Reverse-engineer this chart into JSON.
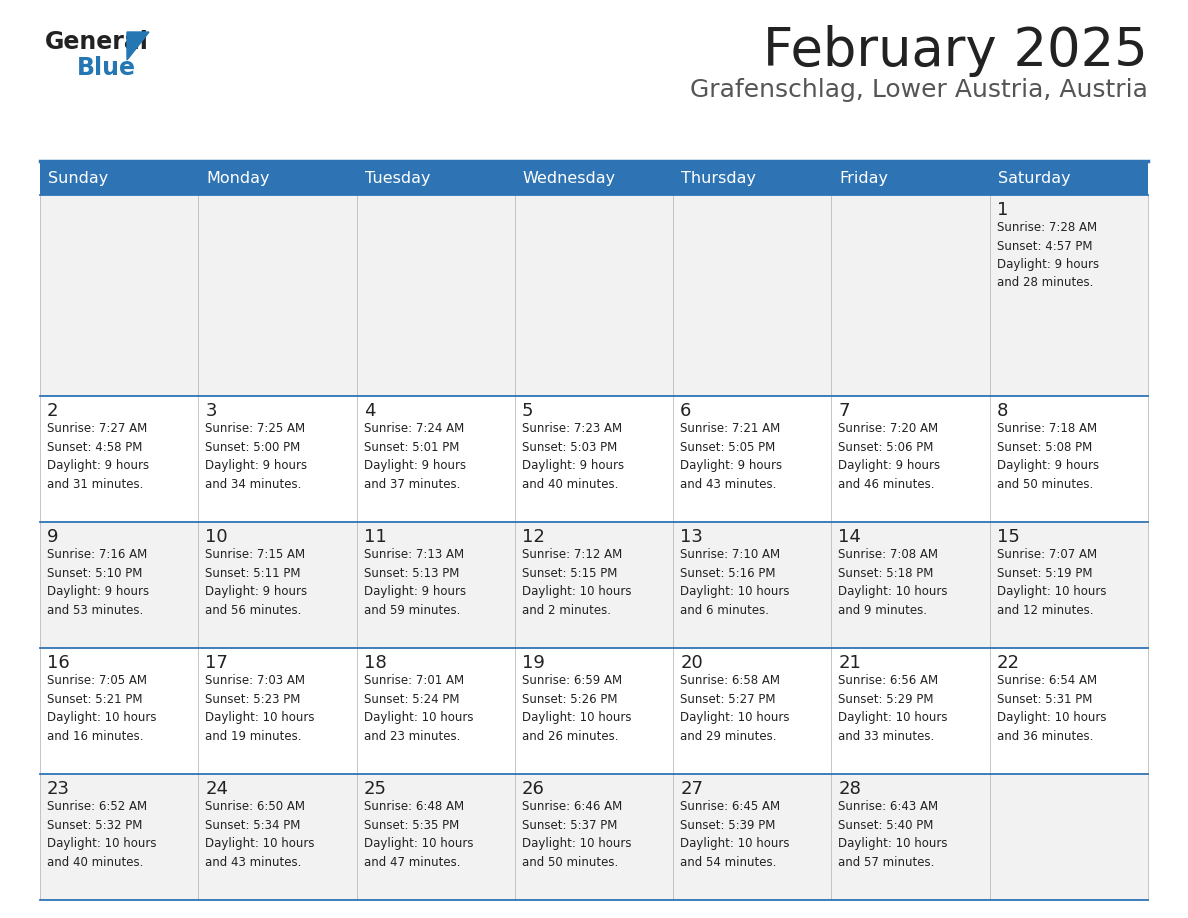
{
  "title": "February 2025",
  "subtitle": "Grafenschlag, Lower Austria, Austria",
  "days_of_week": [
    "Sunday",
    "Monday",
    "Tuesday",
    "Wednesday",
    "Thursday",
    "Friday",
    "Saturday"
  ],
  "header_bg": "#2E74B5",
  "header_text_color": "#FFFFFF",
  "cell_bg_odd": "#F2F2F2",
  "cell_bg_even": "#FFFFFF",
  "border_color": "#2E74B5",
  "day_number_color": "#222222",
  "cell_text_color": "#222222",
  "title_color": "#222222",
  "subtitle_color": "#555555",
  "logo_general_color": "#222222",
  "logo_blue_color": "#2477B3",
  "weeks": [
    [
      {
        "day": null,
        "info": null
      },
      {
        "day": null,
        "info": null
      },
      {
        "day": null,
        "info": null
      },
      {
        "day": null,
        "info": null
      },
      {
        "day": null,
        "info": null
      },
      {
        "day": null,
        "info": null
      },
      {
        "day": 1,
        "info": "Sunrise: 7:28 AM\nSunset: 4:57 PM\nDaylight: 9 hours\nand 28 minutes."
      }
    ],
    [
      {
        "day": 2,
        "info": "Sunrise: 7:27 AM\nSunset: 4:58 PM\nDaylight: 9 hours\nand 31 minutes."
      },
      {
        "day": 3,
        "info": "Sunrise: 7:25 AM\nSunset: 5:00 PM\nDaylight: 9 hours\nand 34 minutes."
      },
      {
        "day": 4,
        "info": "Sunrise: 7:24 AM\nSunset: 5:01 PM\nDaylight: 9 hours\nand 37 minutes."
      },
      {
        "day": 5,
        "info": "Sunrise: 7:23 AM\nSunset: 5:03 PM\nDaylight: 9 hours\nand 40 minutes."
      },
      {
        "day": 6,
        "info": "Sunrise: 7:21 AM\nSunset: 5:05 PM\nDaylight: 9 hours\nand 43 minutes."
      },
      {
        "day": 7,
        "info": "Sunrise: 7:20 AM\nSunset: 5:06 PM\nDaylight: 9 hours\nand 46 minutes."
      },
      {
        "day": 8,
        "info": "Sunrise: 7:18 AM\nSunset: 5:08 PM\nDaylight: 9 hours\nand 50 minutes."
      }
    ],
    [
      {
        "day": 9,
        "info": "Sunrise: 7:16 AM\nSunset: 5:10 PM\nDaylight: 9 hours\nand 53 minutes."
      },
      {
        "day": 10,
        "info": "Sunrise: 7:15 AM\nSunset: 5:11 PM\nDaylight: 9 hours\nand 56 minutes."
      },
      {
        "day": 11,
        "info": "Sunrise: 7:13 AM\nSunset: 5:13 PM\nDaylight: 9 hours\nand 59 minutes."
      },
      {
        "day": 12,
        "info": "Sunrise: 7:12 AM\nSunset: 5:15 PM\nDaylight: 10 hours\nand 2 minutes."
      },
      {
        "day": 13,
        "info": "Sunrise: 7:10 AM\nSunset: 5:16 PM\nDaylight: 10 hours\nand 6 minutes."
      },
      {
        "day": 14,
        "info": "Sunrise: 7:08 AM\nSunset: 5:18 PM\nDaylight: 10 hours\nand 9 minutes."
      },
      {
        "day": 15,
        "info": "Sunrise: 7:07 AM\nSunset: 5:19 PM\nDaylight: 10 hours\nand 12 minutes."
      }
    ],
    [
      {
        "day": 16,
        "info": "Sunrise: 7:05 AM\nSunset: 5:21 PM\nDaylight: 10 hours\nand 16 minutes."
      },
      {
        "day": 17,
        "info": "Sunrise: 7:03 AM\nSunset: 5:23 PM\nDaylight: 10 hours\nand 19 minutes."
      },
      {
        "day": 18,
        "info": "Sunrise: 7:01 AM\nSunset: 5:24 PM\nDaylight: 10 hours\nand 23 minutes."
      },
      {
        "day": 19,
        "info": "Sunrise: 6:59 AM\nSunset: 5:26 PM\nDaylight: 10 hours\nand 26 minutes."
      },
      {
        "day": 20,
        "info": "Sunrise: 6:58 AM\nSunset: 5:27 PM\nDaylight: 10 hours\nand 29 minutes."
      },
      {
        "day": 21,
        "info": "Sunrise: 6:56 AM\nSunset: 5:29 PM\nDaylight: 10 hours\nand 33 minutes."
      },
      {
        "day": 22,
        "info": "Sunrise: 6:54 AM\nSunset: 5:31 PM\nDaylight: 10 hours\nand 36 minutes."
      }
    ],
    [
      {
        "day": 23,
        "info": "Sunrise: 6:52 AM\nSunset: 5:32 PM\nDaylight: 10 hours\nand 40 minutes."
      },
      {
        "day": 24,
        "info": "Sunrise: 6:50 AM\nSunset: 5:34 PM\nDaylight: 10 hours\nand 43 minutes."
      },
      {
        "day": 25,
        "info": "Sunrise: 6:48 AM\nSunset: 5:35 PM\nDaylight: 10 hours\nand 47 minutes."
      },
      {
        "day": 26,
        "info": "Sunrise: 6:46 AM\nSunset: 5:37 PM\nDaylight: 10 hours\nand 50 minutes."
      },
      {
        "day": 27,
        "info": "Sunrise: 6:45 AM\nSunset: 5:39 PM\nDaylight: 10 hours\nand 54 minutes."
      },
      {
        "day": 28,
        "info": "Sunrise: 6:43 AM\nSunset: 5:40 PM\nDaylight: 10 hours\nand 57 minutes."
      },
      {
        "day": null,
        "info": null
      }
    ]
  ],
  "row_heights_ratio": [
    1.6,
    1.0,
    1.0,
    1.0,
    1.0
  ]
}
